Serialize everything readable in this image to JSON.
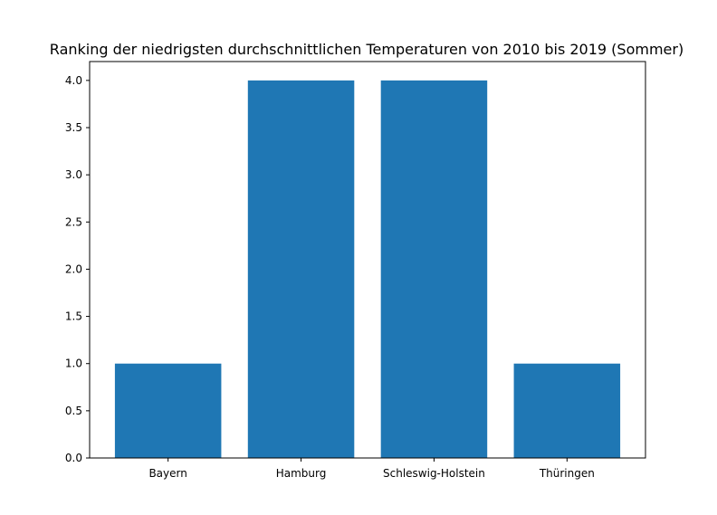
{
  "chart_data": {
    "type": "bar",
    "title": "Ranking der niedrigsten durchschnittlichen Temperaturen von 2010 bis 2019 (Sommer)",
    "xlabel": "",
    "ylabel": "",
    "categories": [
      "Bayern",
      "Hamburg",
      "Schleswig-Holstein",
      "Thüringen"
    ],
    "values": [
      1,
      4,
      4,
      1
    ],
    "ylim": [
      0,
      4.2
    ],
    "yticks": [
      "0.0",
      "0.5",
      "1.0",
      "1.5",
      "2.0",
      "2.5",
      "3.0",
      "3.5",
      "4.0"
    ],
    "bar_color": "#1f77b4",
    "grid": false,
    "legend": "none"
  }
}
